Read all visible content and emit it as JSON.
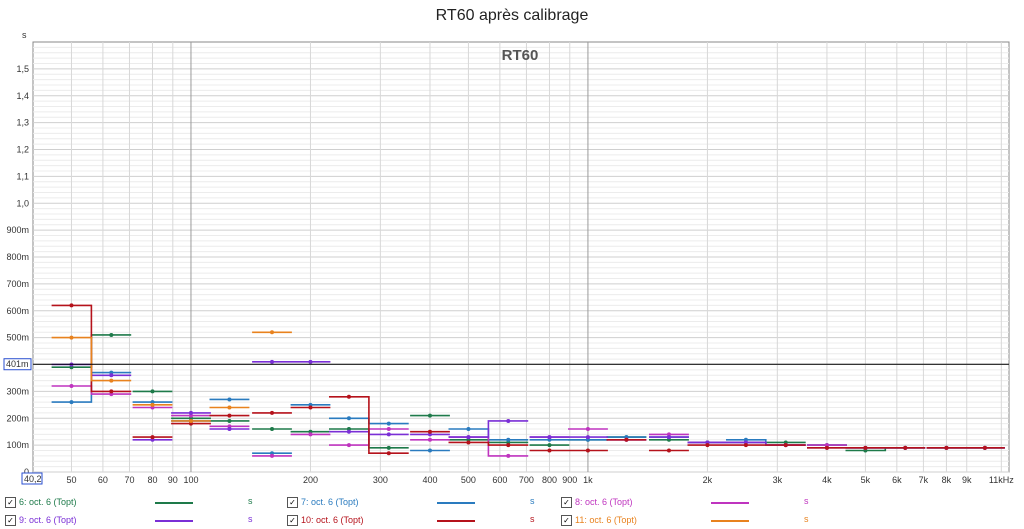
{
  "chart_data": {
    "type": "line",
    "title": "RT60 après calibrage",
    "inner_title": "RT60",
    "ylabel": "s",
    "cursor_label": "401m",
    "cursor_value": 0.401,
    "x_cursor_label": "40,2",
    "xscale": "log",
    "xlim": [
      40,
      11500
    ],
    "ylim": [
      0,
      1.6
    ],
    "grid": true,
    "y_ticks": [
      {
        "v": 0,
        "label": "0"
      },
      {
        "v": 0.1,
        "label": "100m"
      },
      {
        "v": 0.2,
        "label": "200m"
      },
      {
        "v": 0.3,
        "label": "300m"
      },
      {
        "v": 0.4,
        "label": "400m"
      },
      {
        "v": 0.5,
        "label": "500m"
      },
      {
        "v": 0.6,
        "label": "600m"
      },
      {
        "v": 0.7,
        "label": "700m"
      },
      {
        "v": 0.8,
        "label": "800m"
      },
      {
        "v": 0.9,
        "label": "900m"
      },
      {
        "v": 1.0,
        "label": "1,0"
      },
      {
        "v": 1.1,
        "label": "1,1"
      },
      {
        "v": 1.2,
        "label": "1,2"
      },
      {
        "v": 1.3,
        "label": "1,3"
      },
      {
        "v": 1.4,
        "label": "1,4"
      },
      {
        "v": 1.5,
        "label": "1,5"
      }
    ],
    "x_ticks": [
      {
        "v": 50,
        "label": "50"
      },
      {
        "v": 60,
        "label": "60"
      },
      {
        "v": 70,
        "label": "70"
      },
      {
        "v": 80,
        "label": "80"
      },
      {
        "v": 90,
        "label": "90"
      },
      {
        "v": 100,
        "label": "100"
      },
      {
        "v": 200,
        "label": "200"
      },
      {
        "v": 300,
        "label": "300"
      },
      {
        "v": 400,
        "label": "400"
      },
      {
        "v": 500,
        "label": "500"
      },
      {
        "v": 600,
        "label": "600"
      },
      {
        "v": 700,
        "label": "700"
      },
      {
        "v": 800,
        "label": "800"
      },
      {
        "v": 900,
        "label": "900"
      },
      {
        "v": 1000,
        "label": "1k"
      },
      {
        "v": 2000,
        "label": "2k"
      },
      {
        "v": 3000,
        "label": "3k"
      },
      {
        "v": 4000,
        "label": "4k"
      },
      {
        "v": 5000,
        "label": "5k"
      },
      {
        "v": 6000,
        "label": "6k"
      },
      {
        "v": 7000,
        "label": "7k"
      },
      {
        "v": 8000,
        "label": "8k"
      },
      {
        "v": 9000,
        "label": "9k"
      },
      {
        "v": 11000,
        "label": "11kHz"
      }
    ],
    "bands": [
      50,
      63,
      80,
      100,
      125,
      160,
      200,
      250,
      315,
      400,
      500,
      630,
      800,
      1000,
      1250,
      1600,
      2000,
      2500,
      3150,
      4000,
      5000,
      6300,
      8000,
      10000
    ],
    "series": [
      {
        "name": "6: oct. 6 (Topt)",
        "color": "#1e7a4a",
        "unit": "s",
        "values": [
          0.39,
          0.51,
          0.3,
          0.2,
          0.19,
          0.16,
          0.15,
          0.16,
          0.09,
          0.21,
          0.12,
          0.11,
          0.1,
          0.12,
          0.13,
          0.12,
          0.11,
          0.11,
          0.11,
          0.1,
          0.08,
          0.09,
          0.09,
          0.09
        ]
      },
      {
        "name": "7: oct. 6 (Topt)",
        "color": "#2a7bbf",
        "unit": "s",
        "values": [
          0.26,
          0.37,
          0.26,
          0.19,
          0.27,
          0.07,
          0.25,
          0.2,
          0.18,
          0.08,
          0.16,
          0.12,
          0.12,
          0.12,
          0.13,
          0.13,
          0.11,
          0.12,
          0.1,
          0.1,
          0.09,
          0.09,
          0.09,
          0.09
        ]
      },
      {
        "name": "8: oct. 6 (Topt)",
        "color": "#bf34bf",
        "unit": "s",
        "values": [
          0.32,
          0.29,
          0.24,
          0.21,
          0.17,
          0.06,
          0.14,
          0.1,
          0.16,
          0.12,
          0.13,
          0.06,
          0.13,
          0.16,
          0.12,
          0.14,
          0.11,
          0.11,
          0.1,
          0.1,
          0.09,
          0.09,
          0.09,
          0.09
        ]
      },
      {
        "name": "9: oct. 6 (Topt)",
        "color": "#7a2fd6",
        "unit": "s",
        "values": [
          0.4,
          0.36,
          0.12,
          0.22,
          0.16,
          0.41,
          0.41,
          0.15,
          0.14,
          0.14,
          0.13,
          0.19,
          0.13,
          0.13,
          0.12,
          0.13,
          0.11,
          0.11,
          0.1,
          0.09,
          0.09,
          0.09,
          0.09,
          0.09
        ]
      },
      {
        "name": "10: oct. 6 (Topt)",
        "color": "#b5121b",
        "unit": "s",
        "values": [
          0.62,
          0.3,
          0.13,
          0.18,
          0.21,
          0.22,
          0.24,
          0.28,
          0.07,
          0.15,
          0.11,
          0.1,
          0.08,
          0.08,
          0.12,
          0.08,
          0.1,
          0.1,
          0.1,
          0.09,
          0.09,
          0.09,
          0.09,
          0.09
        ]
      },
      {
        "name": "11: oct. 6 (Topt)",
        "color": "#e8821e",
        "unit": "s",
        "values": [
          0.5,
          0.34,
          0.25,
          0.19,
          0.24,
          0.52,
          null,
          null,
          null,
          null,
          null,
          null,
          null,
          null,
          null,
          null,
          null,
          null,
          null,
          null,
          null,
          null,
          null,
          null
        ]
      }
    ]
  }
}
